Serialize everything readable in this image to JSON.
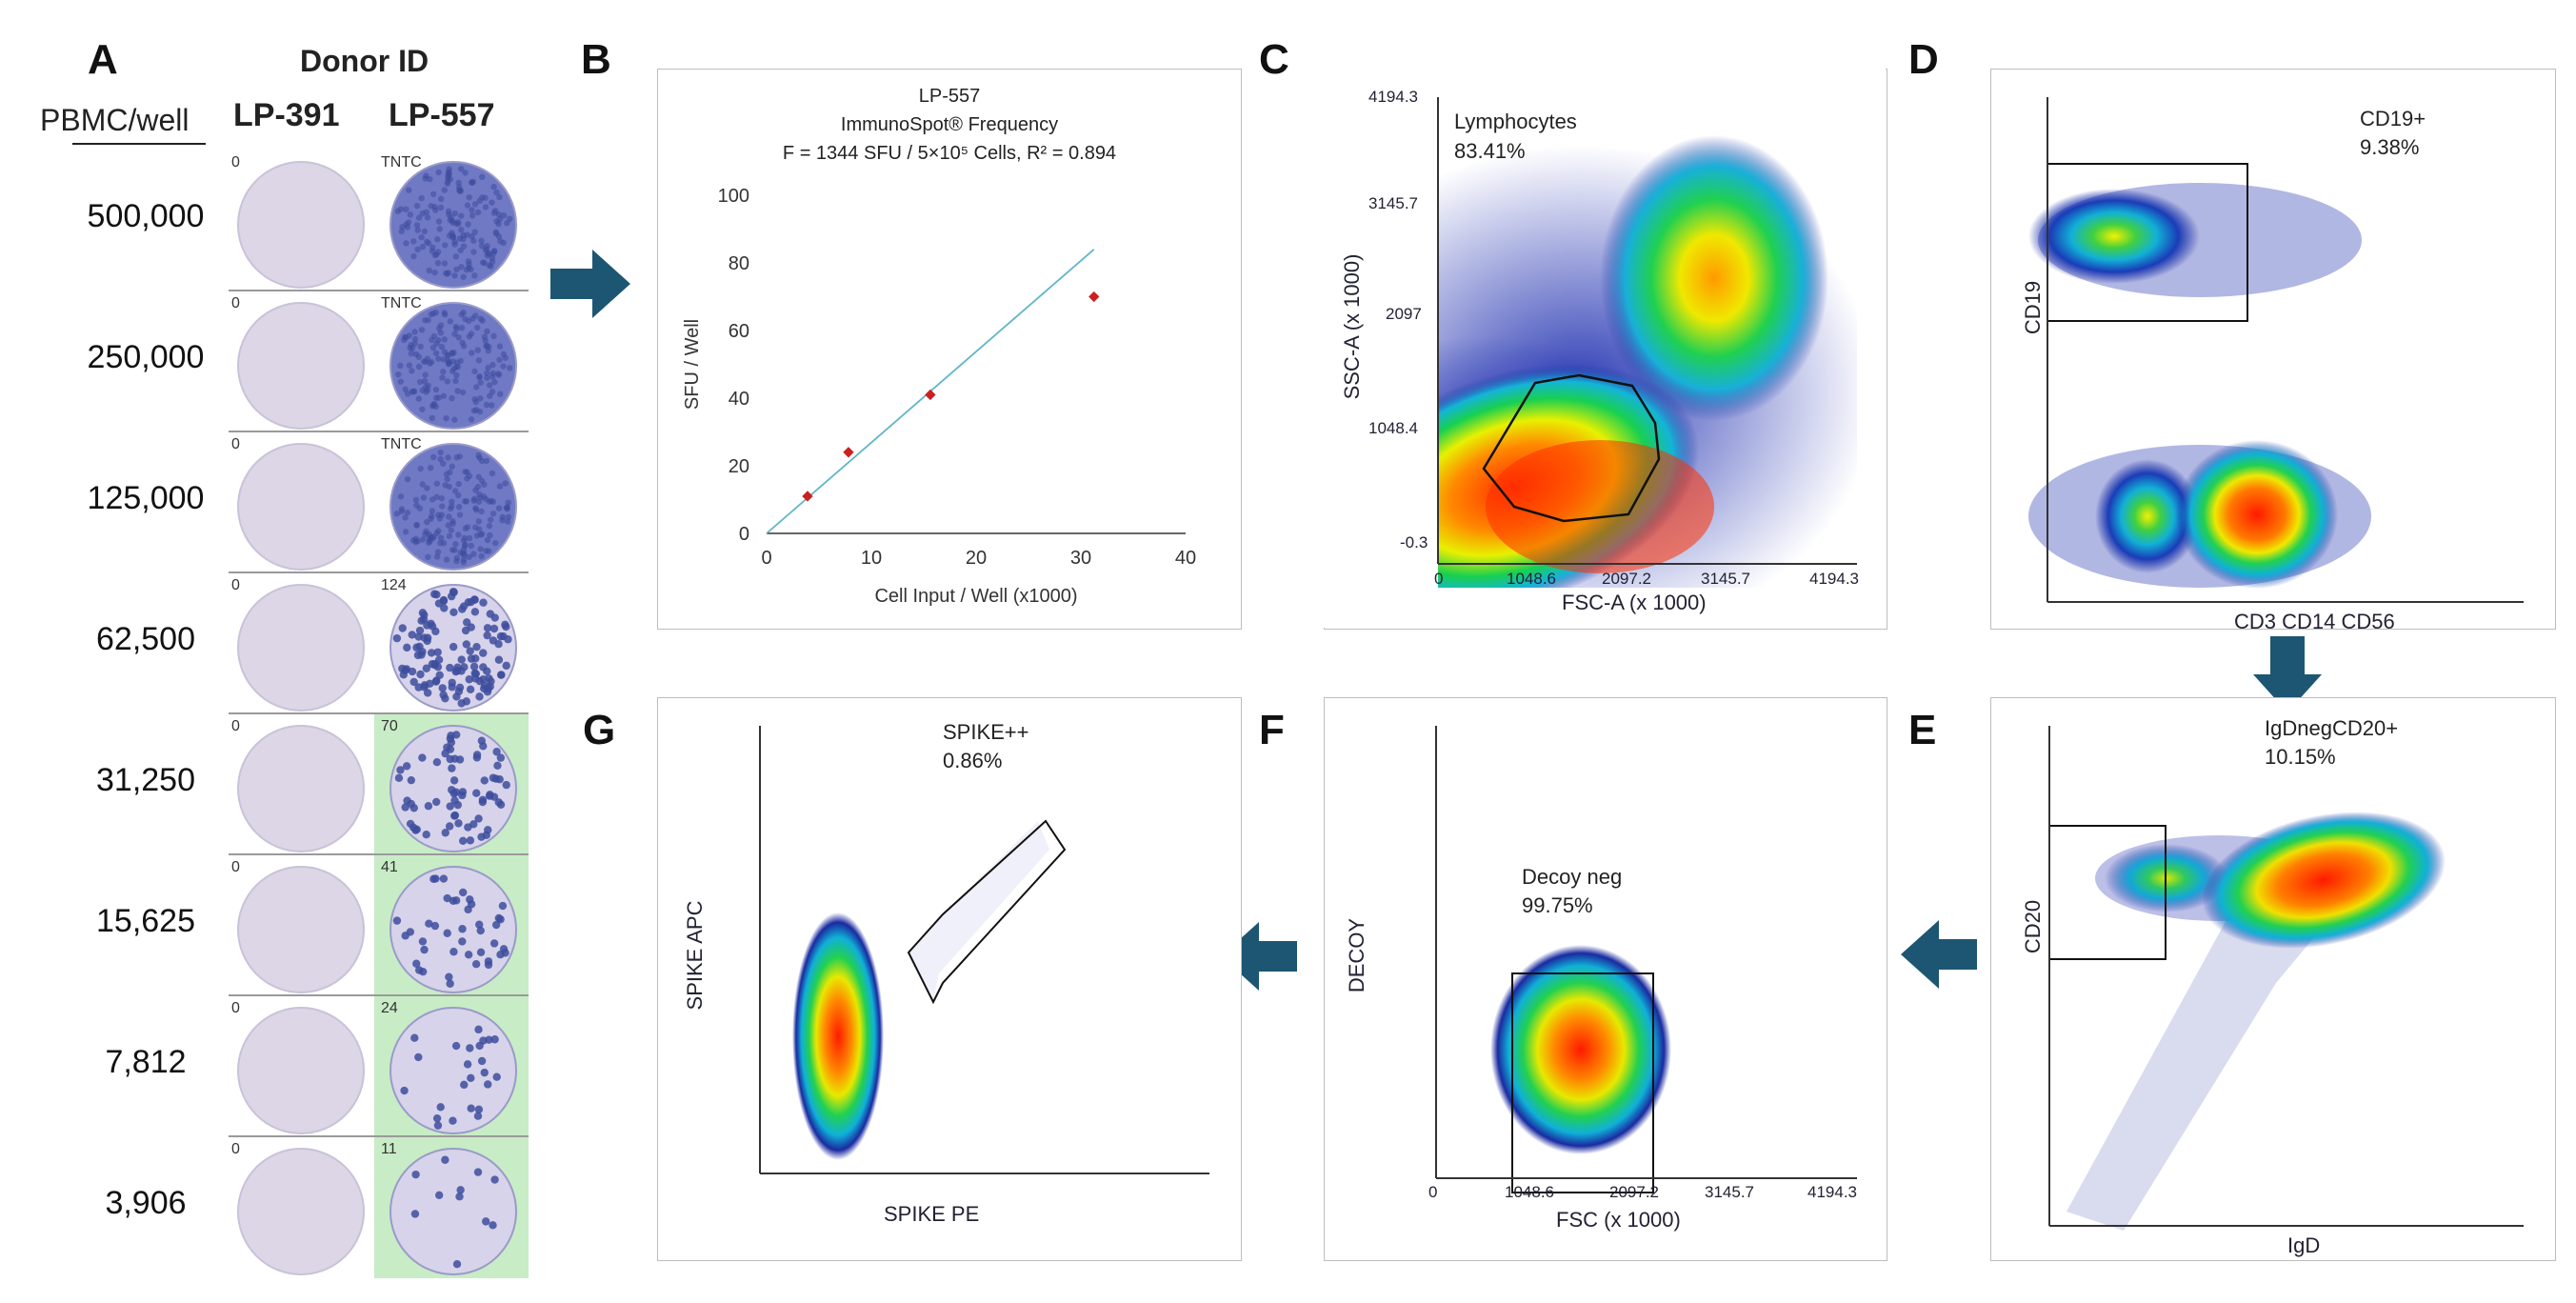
{
  "panel_letters": {
    "a": "A",
    "b": "B",
    "c": "C",
    "d": "D",
    "e": "E",
    "f": "F",
    "g": "G"
  },
  "panel_a": {
    "header_donor": "Donor ID",
    "header_pbmc": "PBMC/well",
    "donors": [
      "LP-391",
      "LP-557"
    ],
    "rows": [
      {
        "cells": "500,000",
        "count_391": "0",
        "count_557": "TNTC",
        "spots": 0
      },
      {
        "cells": "250,000",
        "count_391": "0",
        "count_557": "TNTC",
        "spots": 0
      },
      {
        "cells": "125,000",
        "count_391": "0",
        "count_557": "TNTC",
        "spots": 0
      },
      {
        "cells": "62,500",
        "count_391": "0",
        "count_557": "124",
        "spots": 124
      },
      {
        "cells": "31,250",
        "count_391": "0",
        "count_557": "70",
        "spots": 70
      },
      {
        "cells": "15,625",
        "count_391": "0",
        "count_557": "41",
        "spots": 41
      },
      {
        "cells": "7,812",
        "count_391": "0",
        "count_557": "24",
        "spots": 24
      },
      {
        "cells": "3,906",
        "count_391": "0",
        "count_557": "11",
        "spots": 11
      }
    ],
    "colors": {
      "well_empty": "#dcd6e6",
      "well_dense": "#6f79c4",
      "highlight": "#c8ecc6",
      "spot": "#3e4d9e"
    }
  },
  "panel_b": {
    "title_line1": "LP-557",
    "title_line2": "ImmunoSpot® Frequency",
    "title_line3": "F = 1344 SFU / 5×10⁵ Cells, R² = 0.894"
  },
  "chart_data": {
    "type": "scatter",
    "x": [
      3.906,
      7.812,
      15.625,
      31.25
    ],
    "y": [
      11,
      24,
      41,
      70
    ],
    "trendline": {
      "x": [
        0,
        31.25
      ],
      "y": [
        0,
        84
      ]
    },
    "xlabel": "Cell Input / Well (x1000)",
    "ylabel": "SFU / Well",
    "xlim": [
      0,
      40
    ],
    "ylim": [
      0,
      100
    ],
    "xticks": [
      "0",
      "10",
      "20",
      "30",
      "40"
    ],
    "yticks": [
      "0",
      "20",
      "40",
      "60",
      "80",
      "100"
    ],
    "marker_color": "#cc1f1f",
    "line_color": "#5fb6c7",
    "grid": false
  },
  "panel_c": {
    "gate_label": "Lymphocytes",
    "gate_pct": "83.41%",
    "xlabel": "FSC-A (x 1000)",
    "ylabel": "SSC-A (x 1000)",
    "xticks": [
      "0",
      "1048.6",
      "2097.2",
      "3145.7",
      "4194.3"
    ],
    "yticks": [
      "-0.3",
      "1048.4",
      "2097",
      "3145.7",
      "4194.3"
    ]
  },
  "panel_d": {
    "gate_label": "CD19+",
    "gate_pct": "9.38%",
    "xlabel": "CD3 CD14 CD56",
    "ylabel": "CD19"
  },
  "panel_e": {
    "gate_label": "IgDnegCD20+",
    "gate_pct": "10.15%",
    "xlabel": "IgD",
    "ylabel": "CD20"
  },
  "panel_f": {
    "gate_label": "Decoy neg",
    "gate_pct": "99.75%",
    "xlabel": "FSC (x 1000)",
    "ylabel": "DECOY",
    "xticks": [
      "0",
      "1048.6",
      "2097.2",
      "3145.7",
      "4194.3"
    ]
  },
  "panel_g": {
    "gate_label": "SPIKE++",
    "gate_pct": "0.86%",
    "xlabel": "SPIKE PE",
    "ylabel": "SPIKE APC"
  },
  "colors": {
    "arrow": "#1d5672",
    "axis": "#333333",
    "dot_blue": "#1a2aa0"
  }
}
